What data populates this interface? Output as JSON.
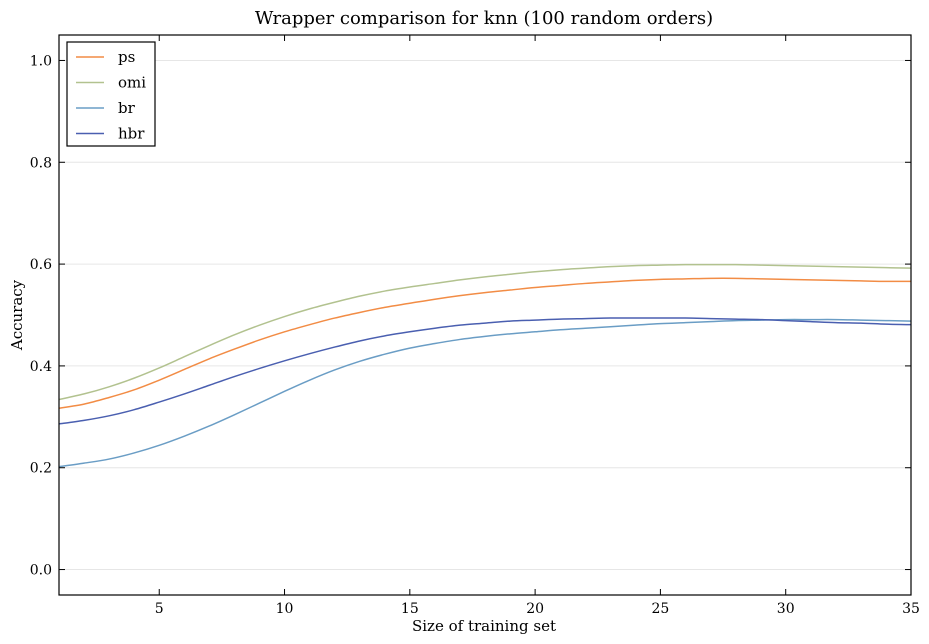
{
  "chart_data": {
    "type": "line",
    "title": "Wrapper comparison for knn (100 random orders)",
    "xlabel": "Size of training set",
    "ylabel": "Accuracy",
    "xlim": [
      1,
      35
    ],
    "ylim": [
      -0.05,
      1.05
    ],
    "xticks": [
      5,
      10,
      15,
      20,
      25,
      30,
      35
    ],
    "yticks": [
      0.0,
      0.2,
      0.4,
      0.6,
      0.8,
      1.0
    ],
    "xtick_labels": [
      "5",
      "10",
      "15",
      "20",
      "25",
      "30",
      "35"
    ],
    "ytick_labels": [
      "0.0",
      "0.2",
      "0.4",
      "0.6",
      "0.8",
      "1.0"
    ],
    "grid": "horizontal",
    "legend_position": "top-left",
    "x": [
      1,
      2,
      3,
      4,
      5,
      6,
      7,
      8,
      9,
      10,
      11,
      12,
      13,
      14,
      15,
      16,
      17,
      18,
      19,
      20,
      21,
      22,
      23,
      24,
      25,
      26,
      27,
      28,
      29,
      30,
      31,
      32,
      33,
      34,
      35
    ],
    "series": [
      {
        "name": "ps",
        "color": "#f28c45",
        "values": [
          0.317,
          0.325,
          0.338,
          0.353,
          0.372,
          0.393,
          0.414,
          0.433,
          0.451,
          0.467,
          0.481,
          0.494,
          0.505,
          0.515,
          0.523,
          0.531,
          0.538,
          0.544,
          0.549,
          0.554,
          0.558,
          0.562,
          0.565,
          0.568,
          0.57,
          0.571,
          0.572,
          0.572,
          0.571,
          0.57,
          0.569,
          0.568,
          0.567,
          0.566,
          0.566
        ]
      },
      {
        "name": "omi",
        "color": "#b2c28f",
        "values": [
          0.334,
          0.345,
          0.359,
          0.376,
          0.396,
          0.418,
          0.44,
          0.461,
          0.48,
          0.497,
          0.512,
          0.525,
          0.537,
          0.547,
          0.555,
          0.562,
          0.569,
          0.575,
          0.58,
          0.585,
          0.589,
          0.592,
          0.595,
          0.597,
          0.598,
          0.599,
          0.599,
          0.599,
          0.598,
          0.597,
          0.596,
          0.595,
          0.594,
          0.593,
          0.592
        ]
      },
      {
        "name": "br",
        "color": "#6a9dc5",
        "values": [
          0.202,
          0.209,
          0.217,
          0.229,
          0.244,
          0.262,
          0.282,
          0.304,
          0.327,
          0.35,
          0.372,
          0.392,
          0.409,
          0.423,
          0.435,
          0.444,
          0.452,
          0.458,
          0.463,
          0.467,
          0.471,
          0.474,
          0.477,
          0.48,
          0.483,
          0.485,
          0.487,
          0.489,
          0.49,
          0.491,
          0.491,
          0.491,
          0.49,
          0.489,
          0.488
        ]
      },
      {
        "name": "hbr",
        "color": "#4a5fb0",
        "values": [
          0.286,
          0.293,
          0.302,
          0.314,
          0.329,
          0.345,
          0.362,
          0.379,
          0.395,
          0.41,
          0.424,
          0.437,
          0.449,
          0.459,
          0.467,
          0.474,
          0.48,
          0.484,
          0.488,
          0.49,
          0.492,
          0.493,
          0.494,
          0.494,
          0.494,
          0.494,
          0.493,
          0.492,
          0.491,
          0.489,
          0.487,
          0.485,
          0.484,
          0.482,
          0.481
        ]
      }
    ]
  }
}
